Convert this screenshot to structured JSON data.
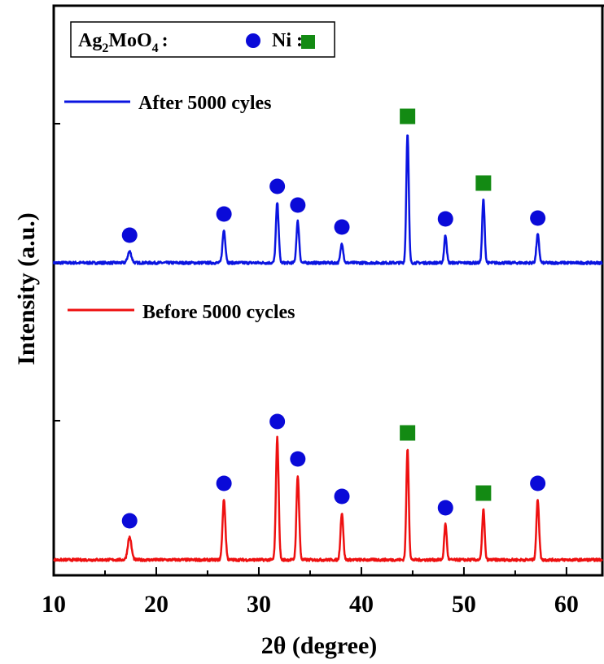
{
  "chart_data": {
    "type": "line",
    "xlabel": "2θ (degree)",
    "ylabel": "Intensity (a.u.)",
    "xlim": [
      10,
      63.5
    ],
    "xticks": [
      10,
      20,
      30,
      40,
      50,
      60
    ],
    "grid": false,
    "legend": {
      "markers": [
        {
          "label_main": "Ag",
          "sub1": "2",
          "label_mid": "MoO",
          "sub2": "4",
          "label_end": ":",
          "marker": "circle",
          "color": "#0a0ad8"
        },
        {
          "label_main": "Ni :",
          "marker": "square",
          "color": "#138a13"
        }
      ]
    },
    "series": [
      {
        "name": "After 5000 cyles",
        "color": "#0a14e0",
        "baseline": 0,
        "peaks": [
          {
            "x": 17.4,
            "h": 14,
            "w": 0.18,
            "phase": "Ag2MoO4"
          },
          {
            "x": 26.6,
            "h": 40,
            "w": 0.14,
            "phase": "Ag2MoO4"
          },
          {
            "x": 31.8,
            "h": 74,
            "w": 0.13,
            "phase": "Ag2MoO4"
          },
          {
            "x": 33.8,
            "h": 51,
            "w": 0.13,
            "phase": "Ag2MoO4"
          },
          {
            "x": 38.1,
            "h": 24,
            "w": 0.13,
            "phase": "Ag2MoO4"
          },
          {
            "x": 44.5,
            "h": 160,
            "w": 0.12,
            "phase": "Ni"
          },
          {
            "x": 48.2,
            "h": 34,
            "w": 0.12,
            "phase": "Ag2MoO4"
          },
          {
            "x": 51.9,
            "h": 78,
            "w": 0.12,
            "phase": "Ni"
          },
          {
            "x": 57.2,
            "h": 35,
            "w": 0.13,
            "phase": "Ag2MoO4"
          }
        ]
      },
      {
        "name": "Before 5000 cycles",
        "color": "#ee1010",
        "baseline": 0,
        "peaks": [
          {
            "x": 17.4,
            "h": 28,
            "w": 0.18,
            "phase": "Ag2MoO4"
          },
          {
            "x": 26.6,
            "h": 74,
            "w": 0.14,
            "phase": "Ag2MoO4"
          },
          {
            "x": 31.8,
            "h": 150,
            "w": 0.13,
            "phase": "Ag2MoO4"
          },
          {
            "x": 33.8,
            "h": 104,
            "w": 0.13,
            "phase": "Ag2MoO4"
          },
          {
            "x": 38.1,
            "h": 58,
            "w": 0.13,
            "phase": "Ag2MoO4"
          },
          {
            "x": 44.5,
            "h": 136,
            "w": 0.12,
            "phase": "Ni"
          },
          {
            "x": 48.2,
            "h": 44,
            "w": 0.12,
            "phase": "Ag2MoO4"
          },
          {
            "x": 51.9,
            "h": 62,
            "w": 0.12,
            "phase": "Ni"
          },
          {
            "x": 57.2,
            "h": 74,
            "w": 0.13,
            "phase": "Ag2MoO4"
          }
        ]
      }
    ]
  }
}
